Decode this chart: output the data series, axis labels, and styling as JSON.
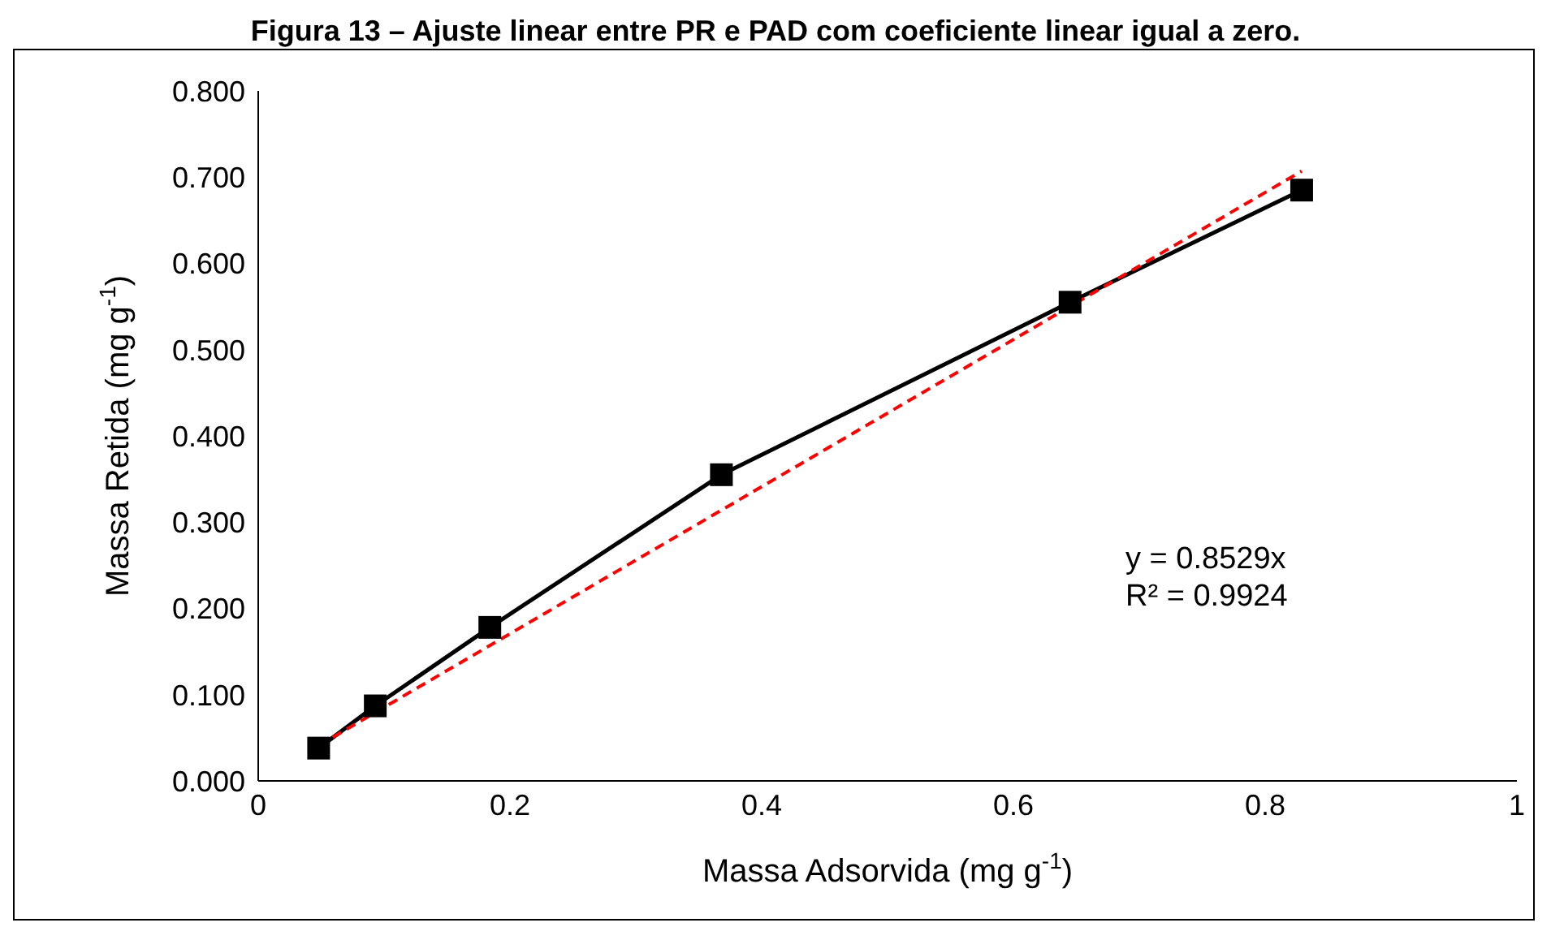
{
  "chart_data": {
    "type": "line",
    "title": "Figura 13 – Ajuste linear entre PR e PAD com coeficiente linear igual a zero.",
    "xlabel": "Massa Adsorvida (mg g$^{-1}$)",
    "ylabel": "Massa Retida (mg g$^{-1}$)",
    "x": [
      0.048,
      0.093,
      0.184,
      0.368,
      0.645,
      0.829
    ],
    "series": [
      {
        "color": "#000000",
        "values": [
          0.038,
          0.087,
          0.178,
          0.355,
          0.555,
          0.685
        ],
        "marker": "square",
        "line_style": "solid"
      },
      {
        "type": "line",
        "color": "#ff0000",
        "x": [
          0.048,
          0.829
        ],
        "values": [
          0.041,
          0.707
        ],
        "marker": "none",
        "line_style": "dashed"
      }
    ],
    "xlim": [
      0,
      1
    ],
    "xticks": [
      0,
      0.2,
      0.4,
      0.6,
      0.8,
      1
    ],
    "ylim": [
      0,
      0.8
    ],
    "yticks": [
      {
        "value": 0,
        "label": "0.000"
      },
      {
        "value": 0.1,
        "label": "0.100"
      },
      {
        "value": 0.2,
        "label": "0.200"
      },
      {
        "value": 0.3,
        "label": "0.300"
      },
      {
        "value": 0.4,
        "label": "0.400"
      },
      {
        "value": 0.5,
        "label": "0.500"
      },
      {
        "value": 0.6,
        "label": "0.600"
      },
      {
        "value": 0.7,
        "label": "0.700"
      },
      {
        "value": 0.8,
        "label": "0.800"
      }
    ],
    "annotations": [
      "y = 0.8529x",
      "R² = 0.9924"
    ],
    "grid": false,
    "legend": false
  }
}
